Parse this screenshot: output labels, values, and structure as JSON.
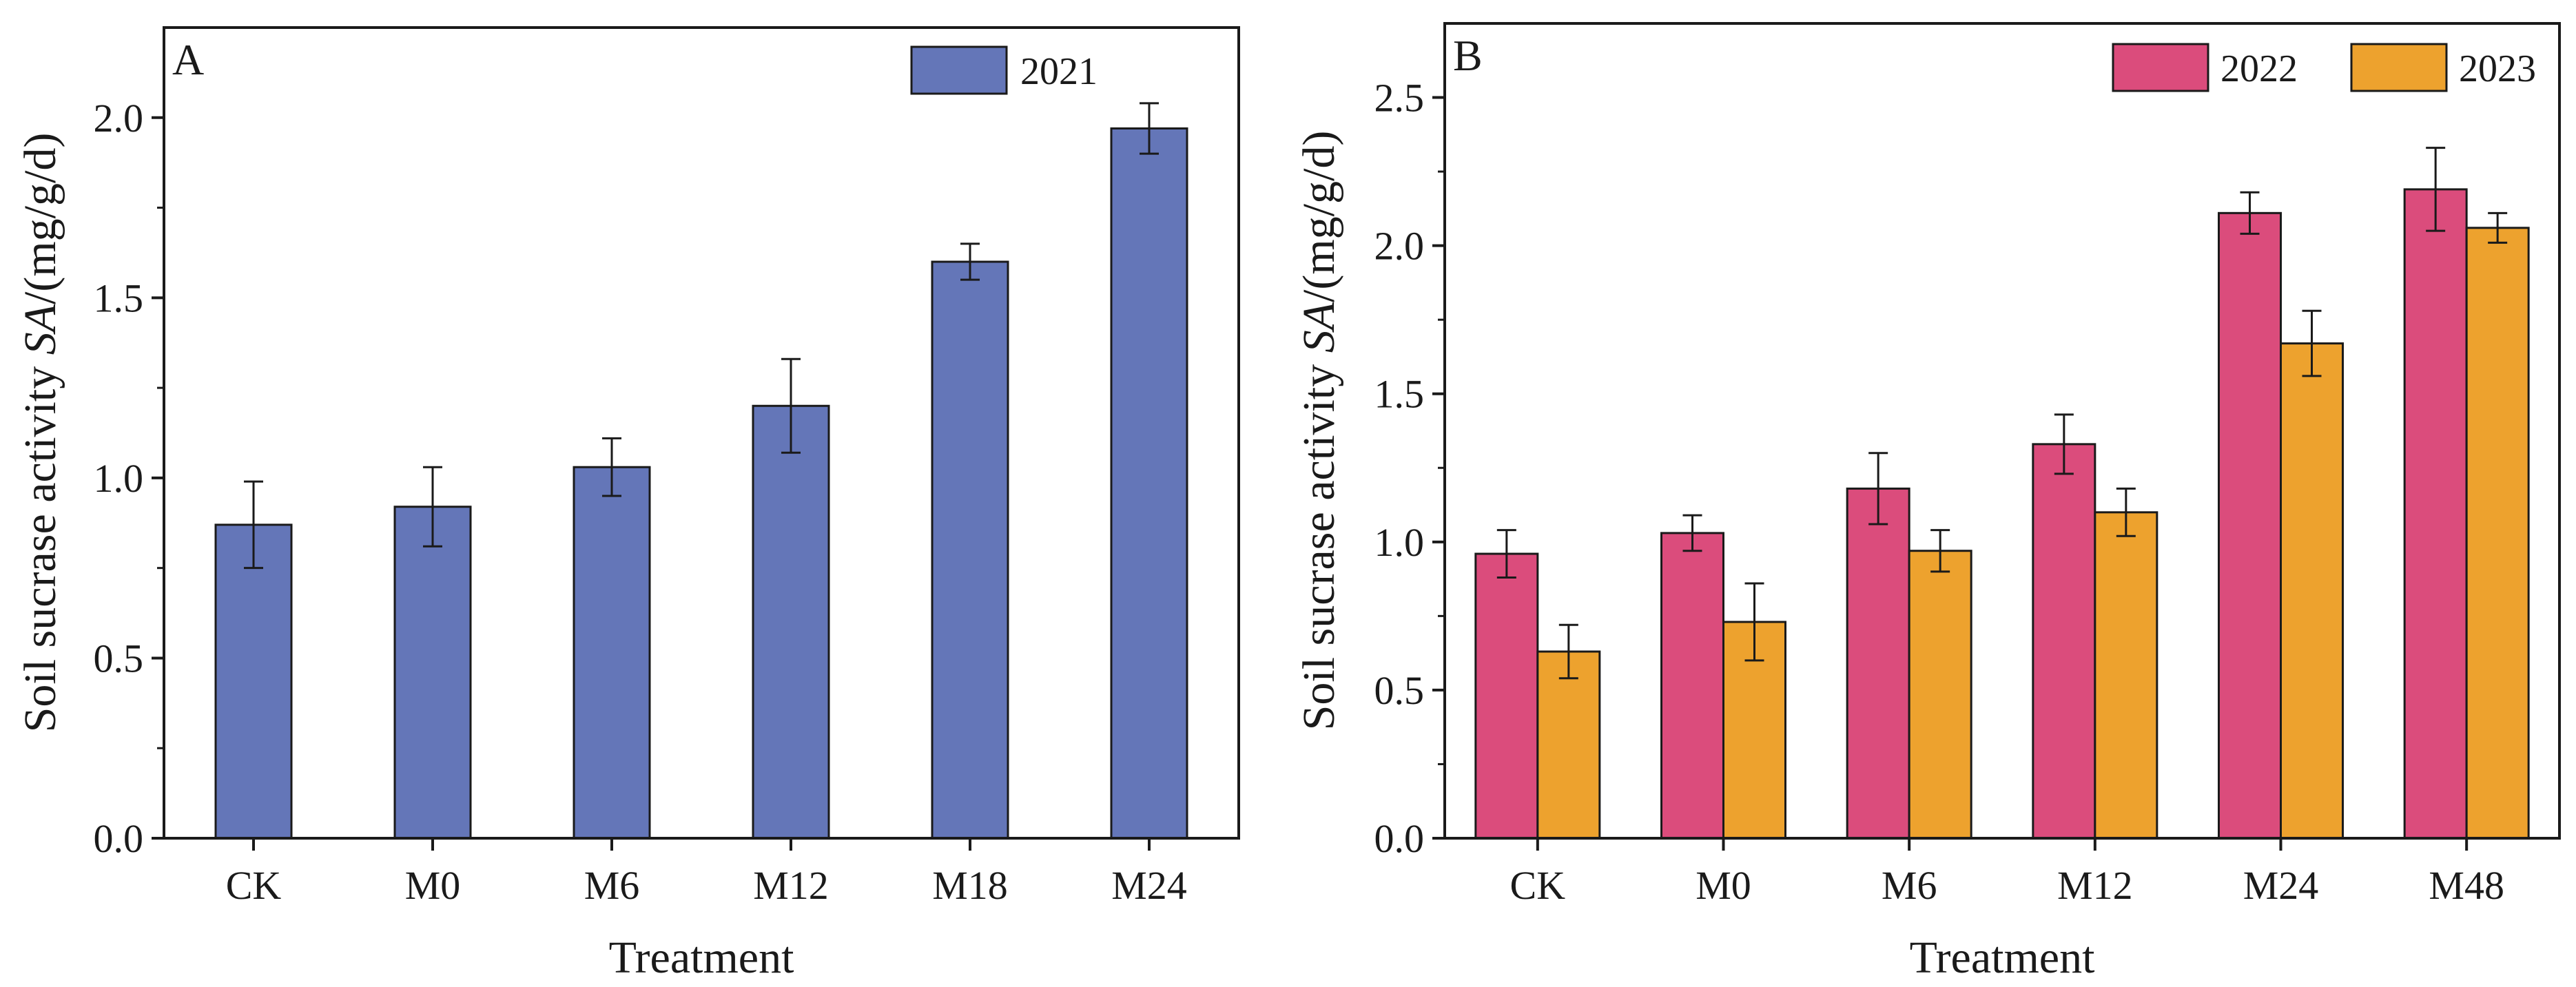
{
  "chart_data": [
    {
      "panel": "A",
      "type": "bar",
      "xlabel": "Treatment",
      "ylabel_prefix": "Soil sucrase activity ",
      "ylabel_italic": "SA",
      "ylabel_suffix": "/(mg/g/d)",
      "ylim": [
        0,
        2.25
      ],
      "yticks": [
        0.0,
        0.5,
        1.0,
        1.5,
        2.0
      ],
      "ytick_labels": [
        "0.0",
        "0.5",
        "1.0",
        "1.5",
        "2.0"
      ],
      "legend_position": "top-right",
      "categories": [
        "CK",
        "M0",
        "M6",
        "M12",
        "M18",
        "M24"
      ],
      "series": [
        {
          "name": "2021",
          "color": "#6476b8",
          "values": [
            0.87,
            0.92,
            1.03,
            1.2,
            1.6,
            1.97
          ],
          "errors": [
            0.12,
            0.11,
            0.08,
            0.13,
            0.05,
            0.07
          ]
        }
      ]
    },
    {
      "panel": "B",
      "type": "bar",
      "xlabel": "Treatment",
      "ylabel_prefix": "Soil sucrase activity ",
      "ylabel_italic": "SA",
      "ylabel_suffix": "/(mg/g/d)",
      "ylim": [
        0,
        2.75
      ],
      "yticks": [
        0.0,
        0.5,
        1.0,
        1.5,
        2.0,
        2.5
      ],
      "ytick_labels": [
        "0.0",
        "0.5",
        "1.0",
        "1.5",
        "2.0",
        "2.5"
      ],
      "legend_position": "top-right",
      "categories": [
        "CK",
        "M0",
        "M6",
        "M12",
        "M24",
        "M48"
      ],
      "series": [
        {
          "name": "2022",
          "color": "#db4c7c",
          "values": [
            0.96,
            1.03,
            1.18,
            1.33,
            2.11,
            2.19
          ],
          "errors": [
            0.08,
            0.06,
            0.12,
            0.1,
            0.07,
            0.14
          ]
        },
        {
          "name": "2023",
          "color": "#eda22e",
          "values": [
            0.63,
            0.73,
            0.97,
            1.1,
            1.67,
            2.06
          ],
          "errors": [
            0.09,
            0.13,
            0.07,
            0.08,
            0.11,
            0.05
          ]
        }
      ]
    }
  ]
}
